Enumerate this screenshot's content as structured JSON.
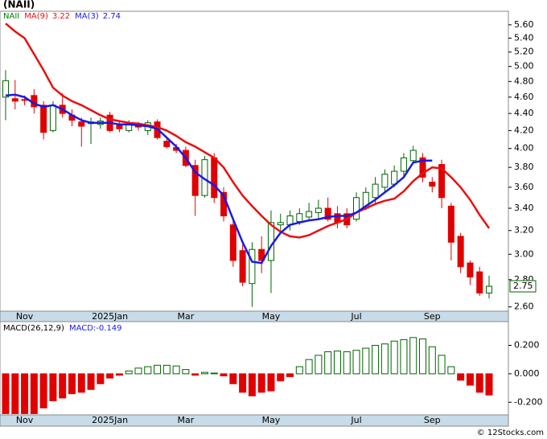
{
  "chart_data": [
    {
      "type": "candlestick",
      "title": "(NAII)",
      "symbol": "NAII",
      "symbol_color": "#008000",
      "categories": [
        null,
        null,
        "Nov",
        null,
        null,
        null,
        null,
        null,
        null,
        null,
        null,
        "2025Jan",
        null,
        null,
        null,
        null,
        null,
        null,
        null,
        "Mar",
        null,
        null,
        null,
        null,
        null,
        null,
        null,
        null,
        "May",
        null,
        null,
        null,
        null,
        null,
        null,
        null,
        null,
        "Jul",
        null,
        null,
        null,
        null,
        null,
        null,
        null,
        "Sep",
        null,
        null,
        null,
        null,
        null,
        null
      ],
      "open": [
        4.6,
        4.58,
        4.57,
        4.62,
        4.5,
        4.2,
        4.5,
        4.38,
        4.3,
        4.28,
        4.27,
        4.38,
        4.26,
        4.2,
        4.27,
        4.2,
        4.3,
        4.08,
        4.01,
        3.98,
        3.82,
        3.52,
        3.9,
        3.55,
        3.25,
        3.03,
        2.77,
        3.04,
        2.95,
        3.25,
        3.25,
        3.28,
        3.32,
        3.36,
        3.4,
        3.35,
        3.35,
        3.3,
        3.4,
        3.5,
        3.6,
        3.63,
        3.76,
        3.87,
        3.9,
        3.65,
        3.83,
        3.42,
        3.15,
        2.93,
        2.86,
        2.7
      ],
      "high": [
        4.95,
        4.82,
        4.62,
        4.7,
        4.55,
        4.55,
        4.65,
        4.45,
        4.35,
        4.35,
        4.35,
        4.42,
        4.3,
        4.32,
        4.3,
        4.32,
        4.33,
        4.12,
        4.05,
        4.02,
        3.88,
        3.92,
        3.95,
        3.6,
        3.3,
        3.08,
        3.1,
        3.15,
        3.38,
        3.35,
        3.38,
        3.4,
        3.45,
        3.48,
        3.5,
        3.42,
        3.4,
        3.55,
        3.6,
        3.7,
        3.78,
        3.82,
        3.95,
        4.03,
        3.95,
        3.7,
        3.88,
        3.45,
        3.18,
        2.95,
        2.9,
        2.83
      ],
      "low": [
        4.32,
        4.45,
        4.5,
        4.4,
        4.1,
        4.18,
        4.35,
        4.25,
        4.02,
        4.05,
        4.22,
        4.18,
        4.18,
        4.18,
        4.2,
        4.15,
        4.1,
        4.0,
        3.95,
        3.8,
        3.33,
        3.5,
        3.45,
        3.28,
        2.9,
        2.75,
        2.6,
        2.85,
        2.7,
        3.2,
        3.2,
        3.25,
        3.28,
        3.3,
        3.28,
        3.22,
        3.22,
        3.28,
        3.38,
        3.45,
        3.55,
        3.6,
        3.7,
        3.85,
        3.65,
        3.55,
        3.4,
        2.95,
        2.85,
        2.76,
        2.68,
        2.66
      ],
      "close": [
        4.81,
        4.55,
        4.56,
        4.48,
        4.18,
        4.5,
        4.4,
        4.32,
        4.25,
        4.3,
        4.31,
        4.2,
        4.22,
        4.27,
        4.24,
        4.29,
        4.12,
        4.02,
        3.98,
        3.82,
        3.52,
        3.88,
        3.5,
        3.33,
        2.95,
        2.78,
        3.04,
        2.95,
        3.27,
        3.27,
        3.33,
        3.35,
        3.37,
        3.4,
        3.3,
        3.27,
        3.25,
        3.5,
        3.55,
        3.63,
        3.73,
        3.76,
        3.9,
        3.98,
        3.7,
        3.61,
        3.5,
        3.1,
        2.9,
        2.82,
        2.7,
        2.75
      ],
      "up_color": "#006400",
      "down_color": "#e00000",
      "series": [
        {
          "name": "MA(9)",
          "color": "#e81010",
          "last": 3.22,
          "values": [
            5.62,
            5.5,
            5.4,
            5.17,
            4.95,
            4.72,
            4.62,
            4.55,
            4.5,
            4.44,
            4.38,
            4.33,
            4.31,
            4.29,
            4.28,
            4.26,
            4.24,
            4.2,
            4.14,
            4.07,
            4.02,
            3.96,
            3.9,
            3.8,
            3.65,
            3.52,
            3.42,
            3.33,
            3.25,
            3.19,
            3.15,
            3.14,
            3.16,
            3.2,
            3.24,
            3.27,
            3.3,
            3.36,
            3.4,
            3.44,
            3.47,
            3.49,
            3.56,
            3.66,
            3.74,
            3.8,
            3.79,
            3.7,
            3.6,
            3.48,
            3.34,
            3.22
          ]
        },
        {
          "name": "MA(3)",
          "color": "#1a1ae6",
          "last": 2.74,
          "values": [
            4.62,
            4.63,
            4.6,
            4.52,
            4.48,
            4.5,
            4.45,
            4.38,
            4.32,
            4.29,
            4.29,
            4.29,
            4.27,
            4.27,
            4.26,
            4.25,
            4.22,
            4.12,
            4.02,
            3.9,
            3.75,
            3.68,
            3.62,
            3.52,
            3.3,
            3.1,
            2.94,
            2.93,
            3.07,
            3.18,
            3.25,
            3.27,
            3.29,
            3.3,
            3.32,
            3.33,
            3.33,
            3.36,
            3.42,
            3.48,
            3.55,
            3.62,
            3.7,
            3.85,
            3.87,
            3.87,
            null,
            null,
            null,
            null,
            null,
            null
          ]
        }
      ],
      "ylim": [
        2.57,
        5.81
      ],
      "log_scale": true,
      "yticks": [
        {
          "value": 2.6,
          "label": "2.60"
        },
        {
          "value": 2.8,
          "label": "2.80"
        },
        {
          "value": 3.0,
          "label": "3.00"
        },
        {
          "value": 3.2,
          "label": "3.20"
        },
        {
          "value": 3.4,
          "label": "3.40"
        },
        {
          "value": 3.6,
          "label": "3.60"
        },
        {
          "value": 3.8,
          "label": "3.80"
        },
        {
          "value": 4.0,
          "label": "4.00"
        },
        {
          "value": 4.2,
          "label": "4.20"
        },
        {
          "value": 4.4,
          "label": "4.40"
        },
        {
          "value": 4.6,
          "label": "4.60"
        },
        {
          "value": 4.8,
          "label": "4.80"
        },
        {
          "value": 5.0,
          "label": "5.00"
        },
        {
          "value": 5.2,
          "label": "5.20"
        },
        {
          "value": 5.4,
          "label": "5.40"
        },
        {
          "value": 5.6,
          "label": "5.60"
        }
      ]
    },
    {
      "type": "bar",
      "title": "MACD(26,12,9)",
      "value_label": "MACD:-0.149",
      "label_color": "#1a1ae6",
      "categories": [
        null,
        null,
        "Nov",
        null,
        null,
        null,
        null,
        null,
        null,
        null,
        null,
        "2025Jan",
        null,
        null,
        null,
        null,
        null,
        null,
        null,
        "Mar",
        null,
        null,
        null,
        null,
        null,
        null,
        null,
        null,
        "May",
        null,
        null,
        null,
        null,
        null,
        null,
        null,
        null,
        "Jul",
        null,
        null,
        null,
        null,
        null,
        null,
        null,
        "Sep",
        null,
        null,
        null,
        null,
        null,
        null
      ],
      "values": [
        -0.28,
        -0.28,
        -0.28,
        -0.28,
        -0.24,
        -0.19,
        -0.17,
        -0.14,
        -0.13,
        -0.11,
        -0.07,
        -0.03,
        -0.01,
        0.02,
        0.04,
        0.05,
        0.06,
        0.06,
        0.055,
        0.03,
        -0.01,
        0.01,
        0.005,
        -0.015,
        -0.07,
        -0.13,
        -0.155,
        -0.13,
        -0.12,
        -0.05,
        -0.02,
        0.05,
        0.1,
        0.13,
        0.155,
        0.16,
        0.155,
        0.165,
        0.18,
        0.2,
        0.21,
        0.23,
        0.24,
        0.255,
        0.245,
        0.19,
        0.13,
        0.05,
        -0.045,
        -0.08,
        -0.13,
        -0.149
      ],
      "up_color": "#006400",
      "down_color": "#e00000",
      "ylim": [
        -0.289,
        0.367
      ],
      "yticks": [
        {
          "value": -0.2,
          "label": "-0.200"
        },
        {
          "value": 0,
          "label": "0.000"
        },
        {
          "value": 0.2,
          "label": "0.200"
        }
      ]
    }
  ],
  "footer": "© 12Stocks.com"
}
